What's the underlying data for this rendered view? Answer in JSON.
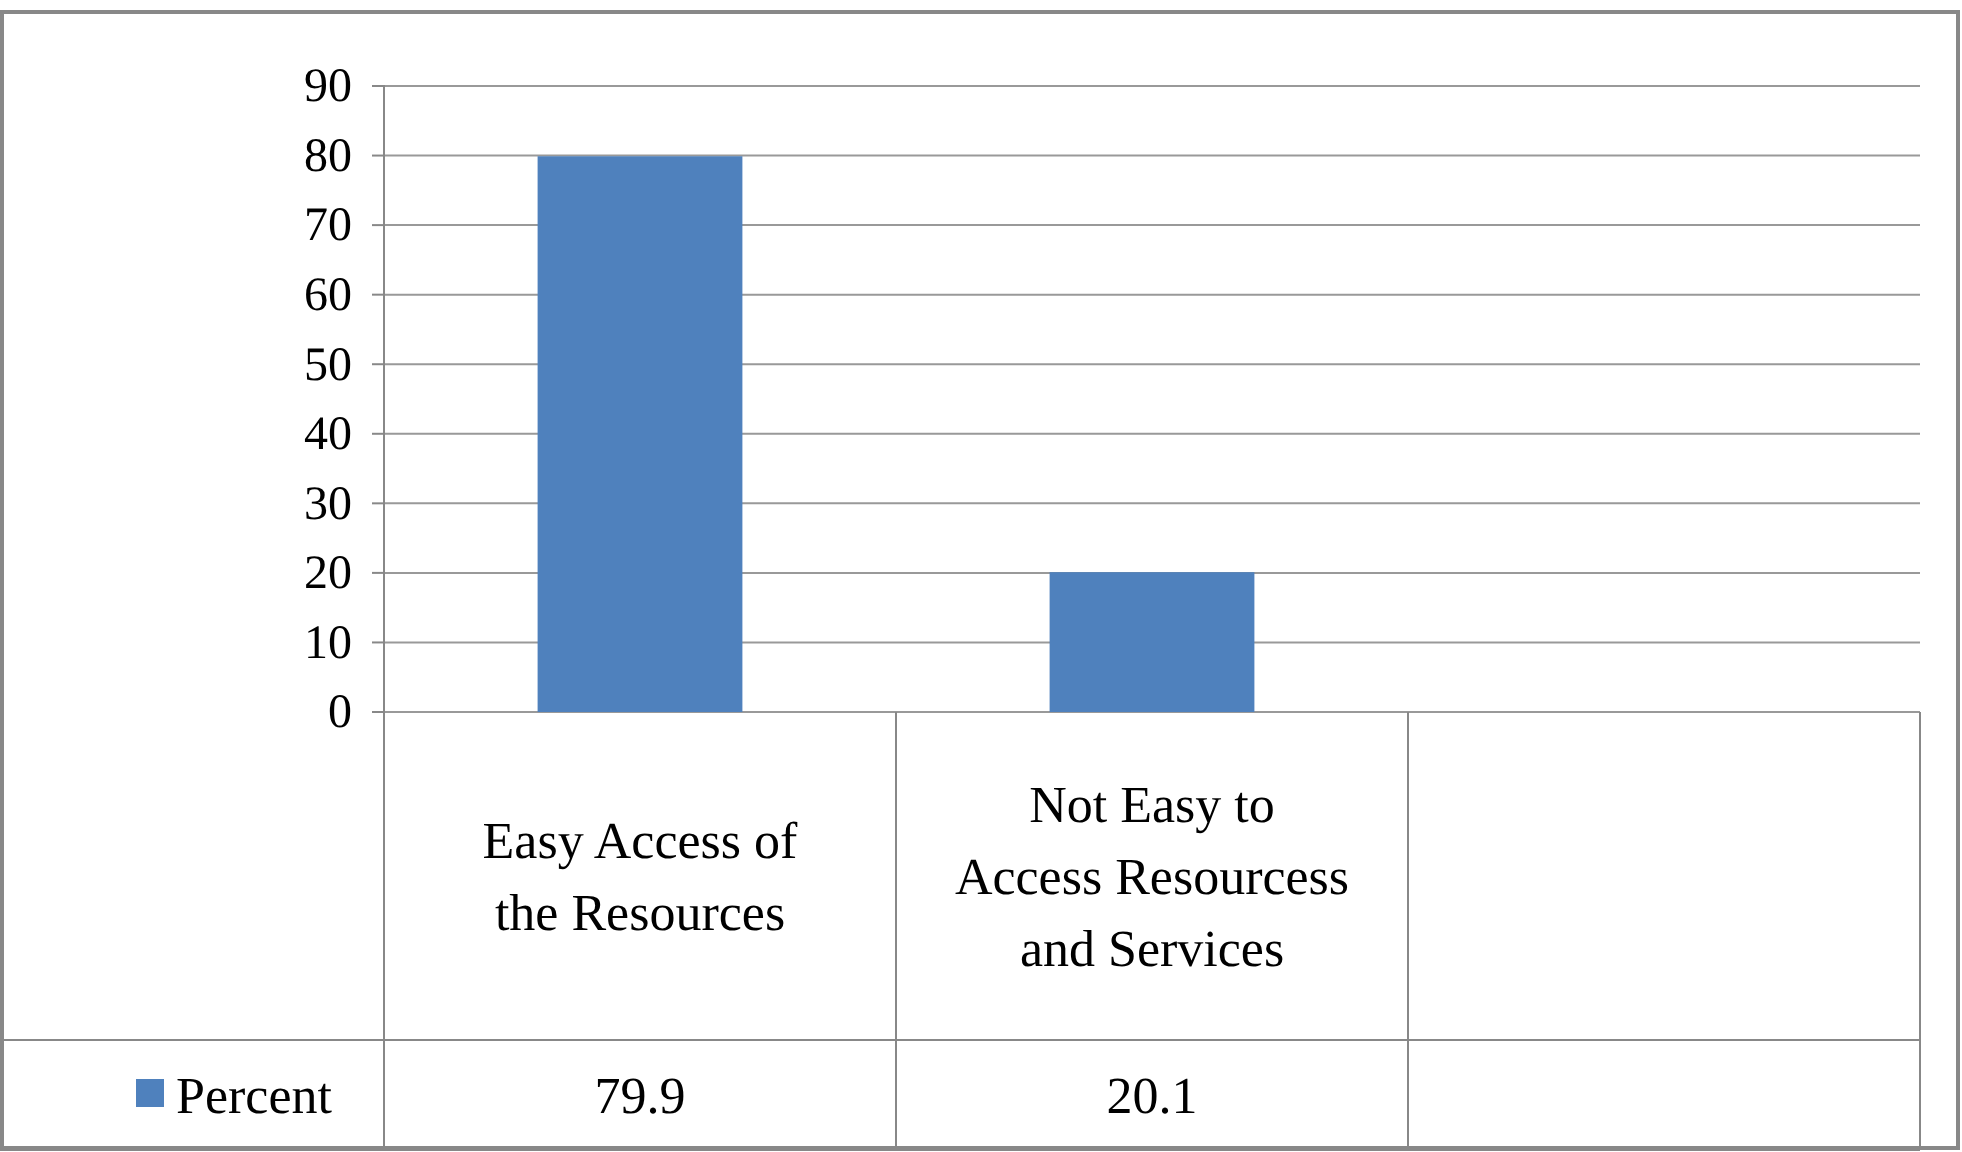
{
  "chart_data": {
    "type": "bar",
    "categories": [
      "Easy Access of the Resources",
      "Not Easy to Access Resourcess and Services",
      null
    ],
    "series": [
      {
        "name": "Percent",
        "color": "#4f81bd",
        "values": [
          79.9,
          20.1,
          null
        ]
      }
    ],
    "ylim": [
      0,
      90
    ],
    "yticks": [
      0,
      10,
      20,
      30,
      40,
      50,
      60,
      70,
      80,
      90
    ],
    "grid": "y",
    "data_labels": true,
    "legend": "bottom left"
  }
}
